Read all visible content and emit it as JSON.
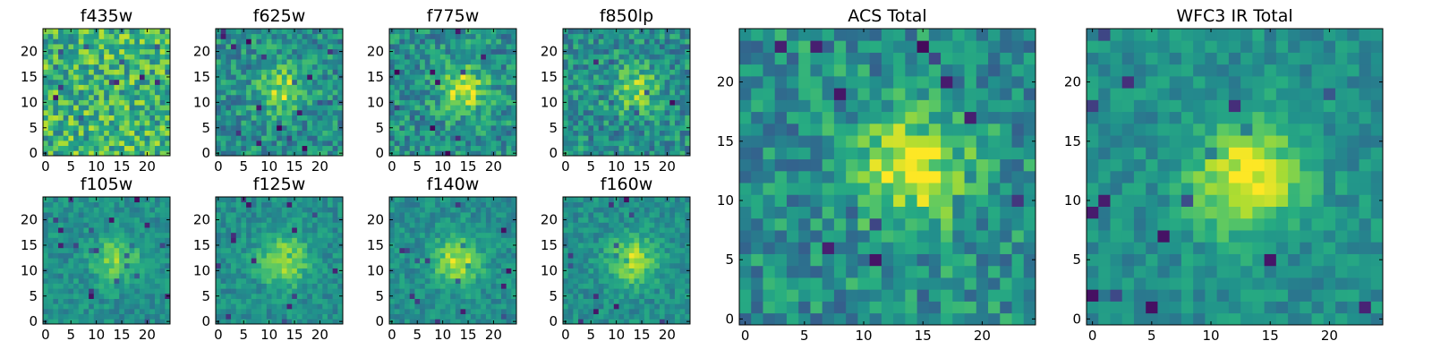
{
  "figure": {
    "colormap": "viridis"
  },
  "chart_data": [
    {
      "type": "heatmap",
      "title": "f435w",
      "xlim": [
        -0.5,
        24.5
      ],
      "ylim": [
        -0.5,
        24.5
      ],
      "xticks": [
        "0",
        "5",
        "10",
        "15",
        "20"
      ],
      "yticks": [
        "0",
        "5",
        "10",
        "15",
        "20"
      ],
      "grid": "25x25 pixel cutout",
      "blob": null,
      "noise_level": "high"
    },
    {
      "type": "heatmap",
      "title": "f625w",
      "xlim": [
        -0.5,
        24.5
      ],
      "ylim": [
        -0.5,
        24.5
      ],
      "xticks": [
        "0",
        "5",
        "10",
        "15",
        "20"
      ],
      "yticks": [
        "0",
        "5",
        "10",
        "15",
        "20"
      ],
      "grid": "25x25 pixel cutout",
      "blob": {
        "x": 13,
        "y": 12.5,
        "peak": 0.85
      },
      "noise_level": "medium"
    },
    {
      "type": "heatmap",
      "title": "f775w",
      "xlim": [
        -0.5,
        24.5
      ],
      "ylim": [
        -0.5,
        24.5
      ],
      "xticks": [
        "0",
        "5",
        "10",
        "15",
        "20"
      ],
      "yticks": [
        "0",
        "5",
        "10",
        "15",
        "20"
      ],
      "grid": "25x25 pixel cutout",
      "blob": {
        "x": 14,
        "y": 12.5,
        "peak": 0.9
      },
      "noise_level": "medium"
    },
    {
      "type": "heatmap",
      "title": "f850lp",
      "xlim": [
        -0.5,
        24.5
      ],
      "ylim": [
        -0.5,
        24.5
      ],
      "xticks": [
        "0",
        "5",
        "10",
        "15",
        "20"
      ],
      "yticks": [
        "0",
        "5",
        "10",
        "15",
        "20"
      ],
      "grid": "25x25 pixel cutout",
      "blob": {
        "x": 14,
        "y": 12.5,
        "peak": 0.8
      },
      "noise_level": "medium"
    },
    {
      "type": "heatmap",
      "title": "f105w",
      "xlim": [
        -0.5,
        24.5
      ],
      "ylim": [
        -0.5,
        24.5
      ],
      "xticks": [
        "0",
        "5",
        "10",
        "15",
        "20"
      ],
      "yticks": [
        "0",
        "5",
        "10",
        "15",
        "20"
      ],
      "grid": "25x25 pixel cutout",
      "blob": {
        "x": 14,
        "y": 12.5,
        "peak": 0.8
      },
      "noise_level": "low"
    },
    {
      "type": "heatmap",
      "title": "f125w",
      "xlim": [
        -0.5,
        24.5
      ],
      "ylim": [
        -0.5,
        24.5
      ],
      "xticks": [
        "0",
        "5",
        "10",
        "15",
        "20"
      ],
      "yticks": [
        "0",
        "5",
        "10",
        "15",
        "20"
      ],
      "grid": "25x25 pixel cutout",
      "blob": {
        "x": 13,
        "y": 12,
        "peak": 0.9
      },
      "noise_level": "low"
    },
    {
      "type": "heatmap",
      "title": "f140w",
      "xlim": [
        -0.5,
        24.5
      ],
      "ylim": [
        -0.5,
        24.5
      ],
      "xticks": [
        "0",
        "5",
        "10",
        "15",
        "20"
      ],
      "yticks": [
        "0",
        "5",
        "10",
        "15",
        "20"
      ],
      "grid": "25x25 pixel cutout",
      "blob": {
        "x": 13,
        "y": 12,
        "peak": 0.9
      },
      "noise_level": "low"
    },
    {
      "type": "heatmap",
      "title": "f160w",
      "xlim": [
        -0.5,
        24.5
      ],
      "ylim": [
        -0.5,
        24.5
      ],
      "xticks": [
        "0",
        "5",
        "10",
        "15",
        "20"
      ],
      "yticks": [
        "0",
        "5",
        "10",
        "15",
        "20"
      ],
      "grid": "25x25 pixel cutout",
      "blob": {
        "x": 13,
        "y": 12,
        "peak": 0.9
      },
      "noise_level": "low"
    },
    {
      "type": "heatmap",
      "title": "ACS Total",
      "xlim": [
        -0.5,
        24.5
      ],
      "ylim": [
        -0.5,
        24.5
      ],
      "xticks": [
        "0",
        "5",
        "10",
        "15",
        "20"
      ],
      "yticks": [
        "0",
        "5",
        "10",
        "15",
        "20"
      ],
      "grid": "25x25 pixel cutout",
      "blob": {
        "x": 14,
        "y": 12.5,
        "peak": 1.0
      },
      "noise_level": "medium"
    },
    {
      "type": "heatmap",
      "title": "WFC3 IR Total",
      "xlim": [
        -0.5,
        24.5
      ],
      "ylim": [
        -0.5,
        24.5
      ],
      "xticks": [
        "0",
        "5",
        "10",
        "15",
        "20"
      ],
      "yticks": [
        "0",
        "5",
        "10",
        "15",
        "20"
      ],
      "grid": "25x25 pixel cutout",
      "blob": {
        "x": 13,
        "y": 12,
        "peak": 1.0
      },
      "noise_level": "low"
    }
  ]
}
